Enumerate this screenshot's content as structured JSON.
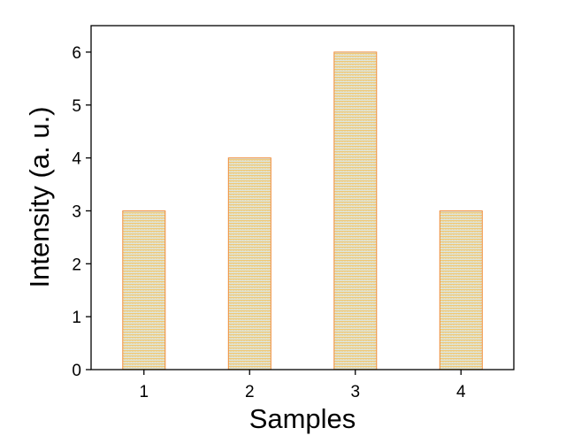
{
  "chart_data": {
    "type": "bar",
    "title": "",
    "xlabel": "Samples",
    "ylabel": "Intensity (a. u.)",
    "categories": [
      "1",
      "2",
      "3",
      "4"
    ],
    "values": [
      3,
      4,
      6,
      3
    ],
    "ylim": [
      0,
      6.5
    ],
    "yticks": [
      0,
      1,
      2,
      3,
      4,
      5,
      6
    ],
    "grid": false,
    "legend": "none",
    "bar_fill_top_color": "#F5C15A",
    "bar_fill_bottom_color": "#D6EEFA",
    "bar_edge_color": "#F08C3A",
    "axis_color": "#000000"
  }
}
